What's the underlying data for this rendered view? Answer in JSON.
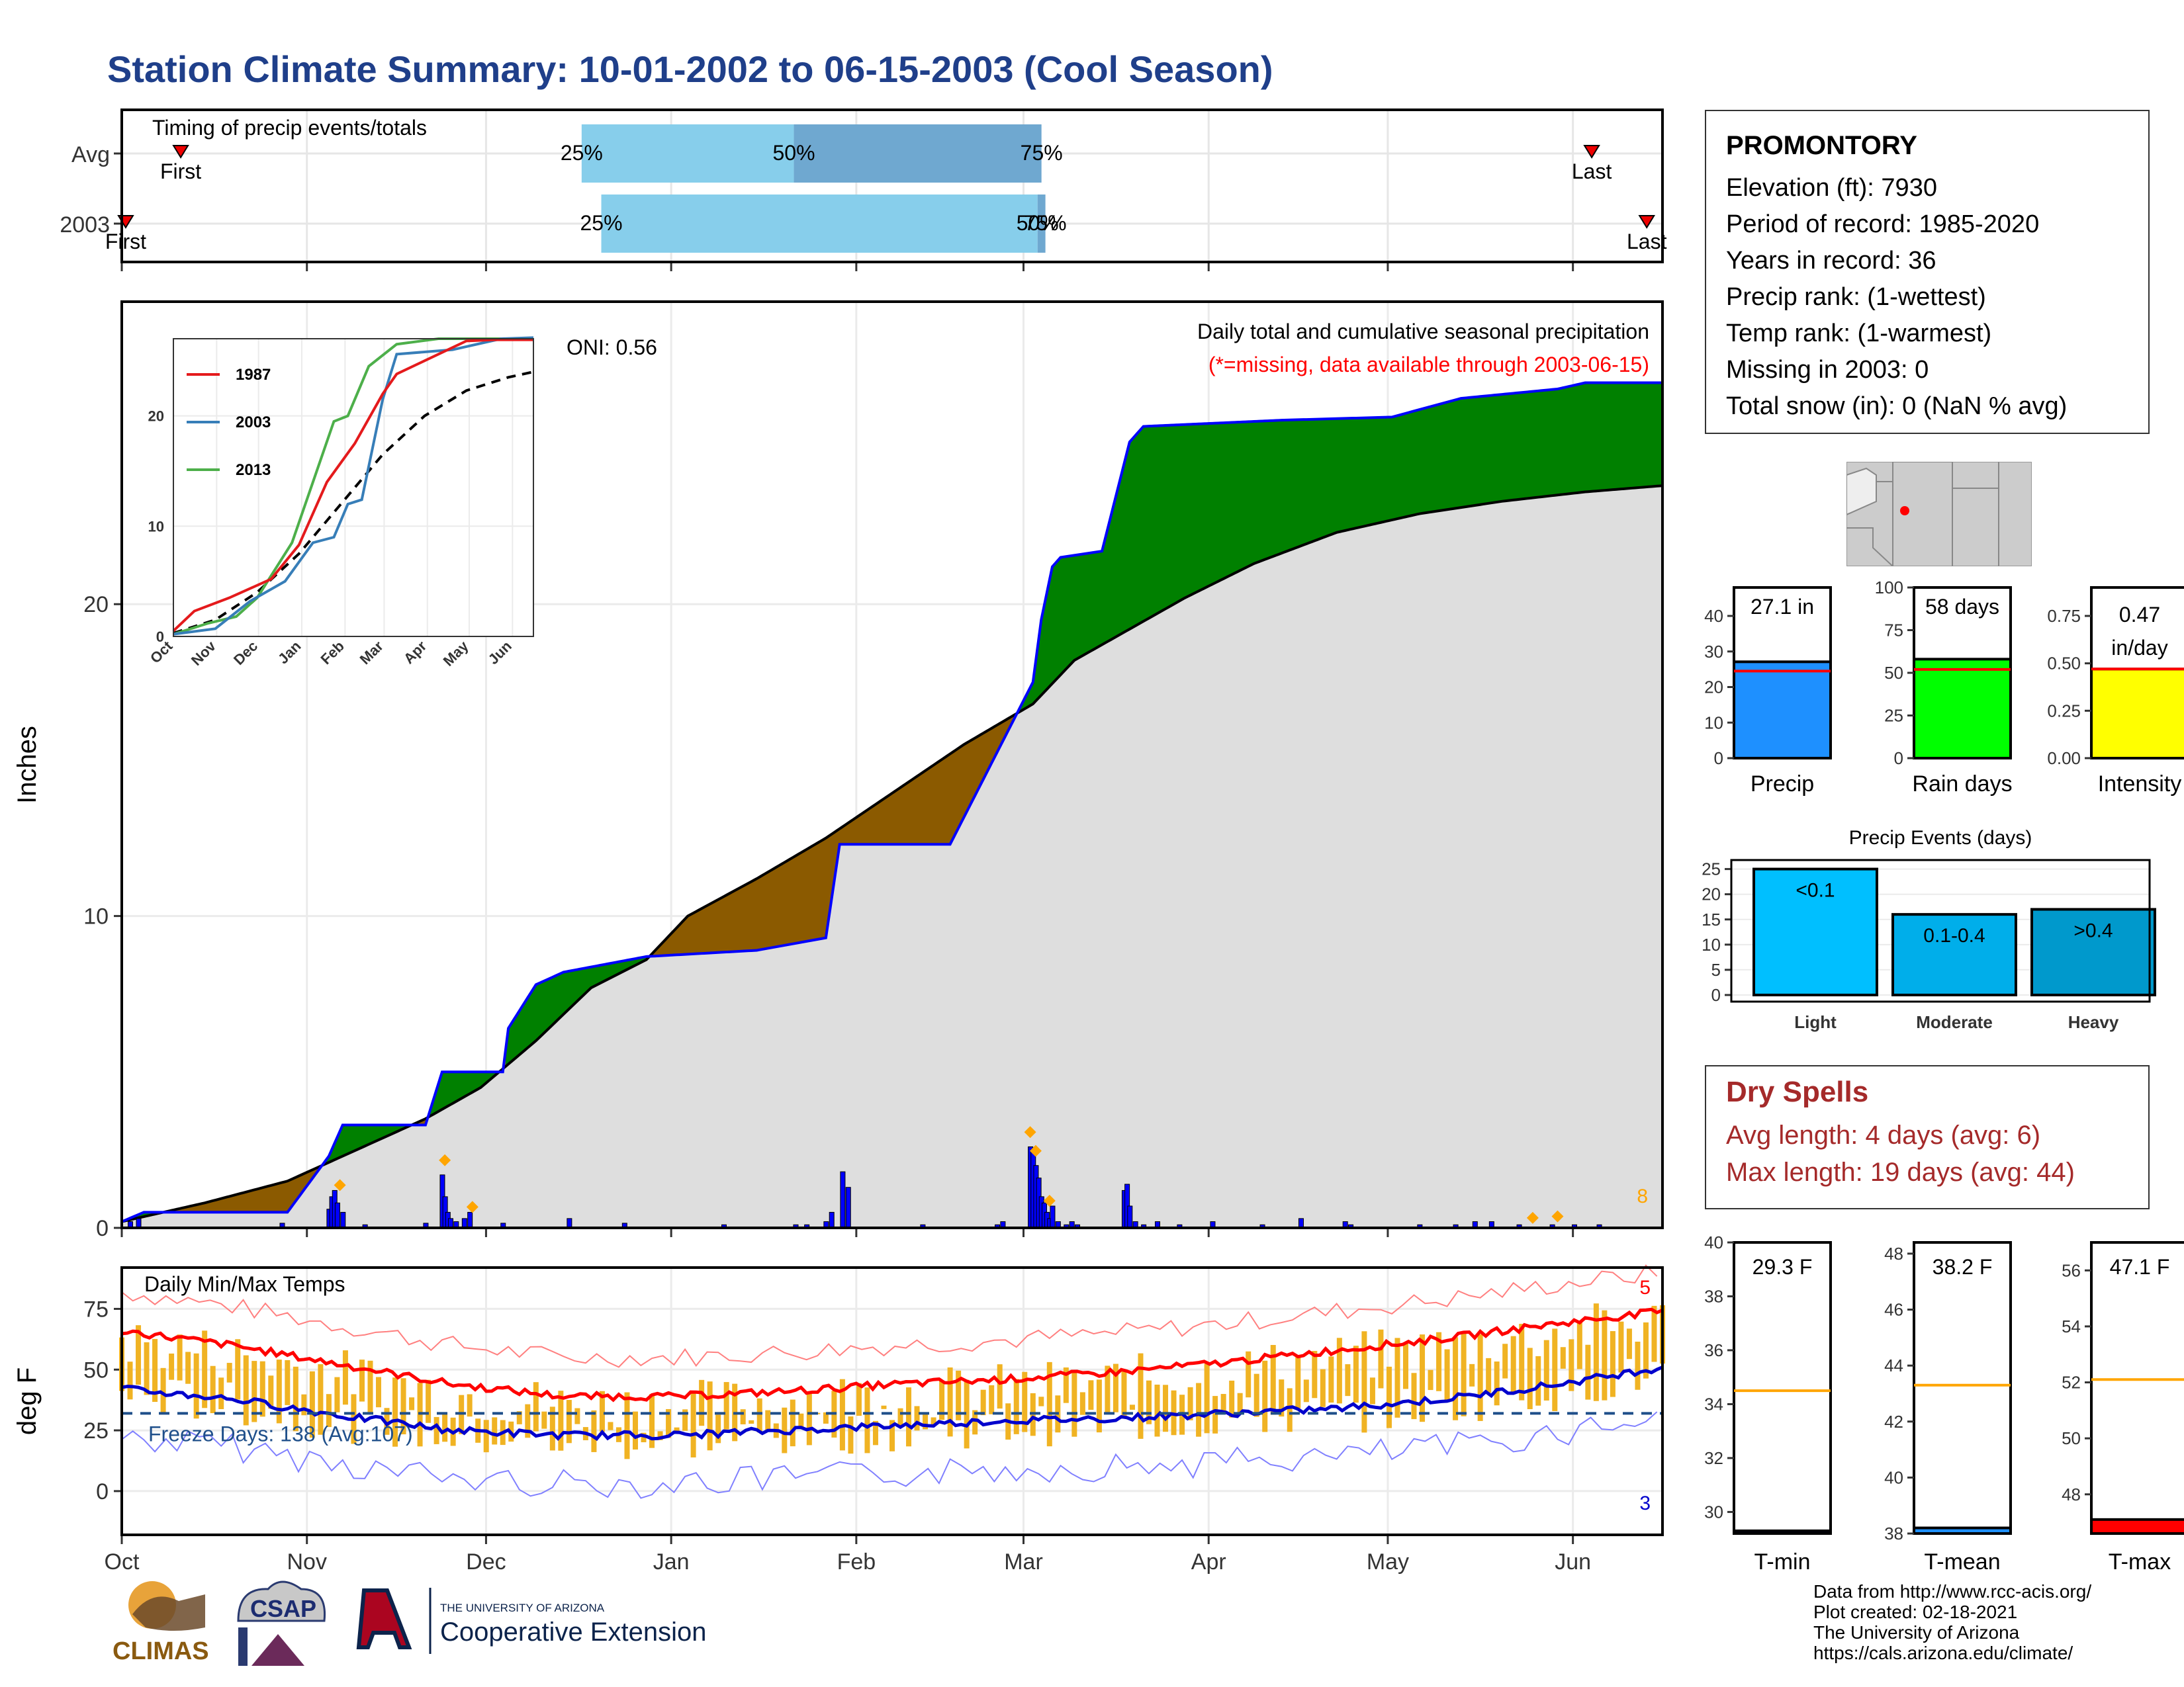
{
  "page": {
    "title": "Station Climate Summary: 10-01-2002 to 06-15-2003 (Cool Season)"
  },
  "station_box": {
    "name": "PROMONTORY",
    "lines": [
      "Elevation (ft): 7930",
      "Period of record: 1985-2020",
      "Years in record: 36",
      "Precip rank:  (1-wettest)",
      "Temp rank:  (1-warmest)",
      "Missing in 2003: 0",
      "Total snow (in): 0 (NaN % avg)"
    ]
  },
  "dry_spells": {
    "heading": "Dry Spells",
    "avg_length": "Avg length: 4 days (avg: 6)",
    "max_length": "Max length: 19 days (avg: 44)"
  },
  "credits": {
    "lines": [
      "Data from http://www.rcc-acis.org/",
      "Plot created: 02-18-2021",
      "The University of Arizona",
      "https://cals.arizona.edu/climate/"
    ]
  },
  "logos": {
    "climas": "CLIMAS",
    "csap": "CSAP",
    "ua_small": "THE UNIVERSITY OF ARIZONA",
    "ua_big": "Cooperative Extension"
  },
  "colors": {
    "title": "#1f3f8a",
    "above_avg": "#008000",
    "below_avg": "#8b5a00",
    "seasonal_line": "#0000ff",
    "normal_fill": "#dedede",
    "temp_bars": "#f0b323",
    "avg_tmax": "#ff0000",
    "avg_tmin": "#0000cc",
    "precip_bar": "#1e90ff",
    "raindays_bar": "#00ff00",
    "intensity_bar": "#ffff00",
    "dry_spells": "#a52a2a"
  },
  "chart_data": [
    {
      "id": "timing",
      "type": "bar",
      "title": "Timing of precip events/totals",
      "rows": [
        {
          "label": "Avg",
          "p25_day": 117,
          "p50_day": 171,
          "p75_day": 234,
          "first_day": 15,
          "last_day": 374
        },
        {
          "label": "2003",
          "p25_day": 122,
          "p50_day": 233,
          "p75_day": 235,
          "first_day": 1,
          "last_day": 388
        }
      ],
      "pct_labels": [
        "25%",
        "50%",
        "75%"
      ],
      "marker_labels": {
        "avg_first": "First",
        "avg_last": "Last",
        "cur_first": "First",
        "cur_last": "Last"
      }
    },
    {
      "id": "precip",
      "type": "area",
      "title": "Daily total and cumulative seasonal precipitation",
      "subtitle": "(*=missing, data available through 2003-06-15)",
      "oni": "ONI: 0.56",
      "ylabel": "Inches",
      "ylim": [
        0,
        30
      ],
      "yticks": [
        0,
        10,
        20
      ],
      "xticks": [
        "Oct",
        "Nov",
        "Dec",
        "Jan",
        "Feb",
        "Mar",
        "Apr",
        "May",
        "Jun"
      ],
      "corner_count": "8",
      "cumulative_2003": [
        [
          0,
          0.2
        ],
        [
          8,
          0.5
        ],
        [
          60,
          0.5
        ],
        [
          75,
          2.3
        ],
        [
          80,
          3.3
        ],
        [
          110,
          3.3
        ],
        [
          116,
          5.0
        ],
        [
          138,
          5.0
        ],
        [
          140,
          6.4
        ],
        [
          150,
          7.8
        ],
        [
          160,
          8.2
        ],
        [
          190,
          8.7
        ],
        [
          230,
          8.9
        ],
        [
          255,
          9.3
        ],
        [
          260,
          12.3
        ],
        [
          280,
          12.3
        ],
        [
          300,
          12.3
        ],
        [
          330,
          17.5
        ],
        [
          333,
          19.5
        ],
        [
          337,
          21.2
        ],
        [
          340,
          21.5
        ],
        [
          355,
          21.7
        ],
        [
          365,
          25.2
        ],
        [
          370,
          25.7
        ],
        [
          420,
          25.9
        ],
        [
          460,
          26.0
        ],
        [
          485,
          26.6
        ],
        [
          520,
          26.9
        ],
        [
          530,
          27.1
        ],
        [
          552,
          27.1
        ],
        [
          558,
          27.1
        ]
      ],
      "cumulative_avg": [
        [
          0,
          0.2
        ],
        [
          30,
          0.8
        ],
        [
          60,
          1.5
        ],
        [
          85,
          2.5
        ],
        [
          110,
          3.5
        ],
        [
          130,
          4.5
        ],
        [
          150,
          6.0
        ],
        [
          170,
          7.7
        ],
        [
          190,
          8.6
        ],
        [
          205,
          10.0
        ],
        [
          230,
          11.2
        ],
        [
          255,
          12.5
        ],
        [
          280,
          14.0
        ],
        [
          305,
          15.5
        ],
        [
          330,
          16.8
        ],
        [
          345,
          18.2
        ],
        [
          365,
          19.2
        ],
        [
          385,
          20.2
        ],
        [
          410,
          21.3
        ],
        [
          440,
          22.3
        ],
        [
          470,
          22.9
        ],
        [
          500,
          23.3
        ],
        [
          530,
          23.6
        ],
        [
          558,
          23.8
        ]
      ],
      "daily_2003": [
        [
          3,
          0.2
        ],
        [
          6,
          0.3
        ],
        [
          58,
          0.15
        ],
        [
          75,
          0.6
        ],
        [
          76,
          1.0
        ],
        [
          77,
          1.2
        ],
        [
          78,
          0.8
        ],
        [
          80,
          0.5
        ],
        [
          88,
          0.1
        ],
        [
          110,
          0.15
        ],
        [
          116,
          1.7
        ],
        [
          117,
          1.0
        ],
        [
          118,
          0.5
        ],
        [
          119,
          0.3
        ],
        [
          121,
          0.2
        ],
        [
          124,
          0.3
        ],
        [
          126,
          0.5
        ],
        [
          138,
          0.15
        ],
        [
          162,
          0.3
        ],
        [
          182,
          0.15
        ],
        [
          218,
          0.1
        ],
        [
          244,
          0.1
        ],
        [
          248,
          0.1
        ],
        [
          255,
          0.2
        ],
        [
          257,
          0.5
        ],
        [
          261,
          1.8
        ],
        [
          263,
          1.3
        ],
        [
          290,
          0.1
        ],
        [
          317,
          0.1
        ],
        [
          319,
          0.2
        ],
        [
          329,
          2.6
        ],
        [
          330,
          2.5
        ],
        [
          331,
          2.0
        ],
        [
          332,
          1.6
        ],
        [
          333,
          1.0
        ],
        [
          334,
          0.8
        ],
        [
          335,
          0.5
        ],
        [
          336,
          0.3
        ],
        [
          337,
          0.7
        ],
        [
          339,
          0.2
        ],
        [
          342,
          0.1
        ],
        [
          344,
          0.2
        ],
        [
          346,
          0.1
        ],
        [
          363,
          1.2
        ],
        [
          364,
          1.4
        ],
        [
          365,
          0.7
        ],
        [
          367,
          0.2
        ],
        [
          370,
          0.1
        ],
        [
          375,
          0.2
        ],
        [
          383,
          0.1
        ],
        [
          395,
          0.2
        ],
        [
          413,
          0.1
        ],
        [
          427,
          0.3
        ],
        [
          443,
          0.2
        ],
        [
          445,
          0.1
        ],
        [
          470,
          0.1
        ],
        [
          483,
          0.1
        ],
        [
          490,
          0.2
        ],
        [
          496,
          0.2
        ],
        [
          506,
          0.1
        ],
        [
          518,
          0.1
        ],
        [
          526,
          0.1
        ],
        [
          535,
          0.1
        ]
      ],
      "snow_markers": [
        [
          79,
          1.2
        ],
        [
          117,
          2.0
        ],
        [
          127,
          0.5
        ],
        [
          329,
          2.9
        ],
        [
          331,
          2.3
        ],
        [
          336,
          0.7
        ],
        [
          511,
          0.15
        ],
        [
          520,
          0.2
        ]
      ],
      "inset": {
        "series": [
          {
            "name": "1987",
            "color": "#e41a1c"
          },
          {
            "name": "2003",
            "color": "#377eb8"
          },
          {
            "name": "2013",
            "color": "#4daf4a"
          }
        ],
        "yticks": [
          0,
          10,
          20
        ],
        "ylim": [
          0,
          27
        ],
        "xticks": [
          "Oct",
          "Nov",
          "Dec",
          "Jan",
          "Feb",
          "Mar",
          "Apr",
          "May",
          "Jun"
        ],
        "s1987": [
          [
            0,
            0.5
          ],
          [
            15,
            2.3
          ],
          [
            40,
            3.5
          ],
          [
            70,
            5.2
          ],
          [
            90,
            8.3
          ],
          [
            110,
            14.0
          ],
          [
            130,
            17.5
          ],
          [
            150,
            22.0
          ],
          [
            160,
            23.8
          ],
          [
            180,
            25.0
          ],
          [
            210,
            26.8
          ],
          [
            230,
            26.9
          ],
          [
            258,
            26.9
          ]
        ],
        "s2003": [
          [
            0,
            0.2
          ],
          [
            30,
            0.7
          ],
          [
            55,
            3.2
          ],
          [
            80,
            5.0
          ],
          [
            100,
            8.5
          ],
          [
            115,
            9.0
          ],
          [
            125,
            12.0
          ],
          [
            135,
            12.4
          ],
          [
            150,
            21.5
          ],
          [
            160,
            25.6
          ],
          [
            200,
            26.0
          ],
          [
            235,
            27.0
          ],
          [
            258,
            27.1
          ]
        ],
        "s2013": [
          [
            0,
            0.2
          ],
          [
            25,
            1.2
          ],
          [
            45,
            1.8
          ],
          [
            60,
            3.5
          ],
          [
            85,
            8.5
          ],
          [
            100,
            14.0
          ],
          [
            115,
            19.5
          ],
          [
            125,
            20.0
          ],
          [
            140,
            24.5
          ],
          [
            160,
            26.5
          ],
          [
            190,
            27.0
          ],
          [
            258,
            27.0
          ]
        ],
        "savg": [
          [
            0,
            0.3
          ],
          [
            30,
            1.5
          ],
          [
            60,
            4.0
          ],
          [
            90,
            7.5
          ],
          [
            120,
            12.0
          ],
          [
            150,
            16.5
          ],
          [
            180,
            20.0
          ],
          [
            210,
            22.3
          ],
          [
            240,
            23.5
          ],
          [
            258,
            24.0
          ]
        ]
      }
    },
    {
      "id": "temps",
      "type": "bar",
      "title": "Daily Min/Max Temps",
      "ylabel": "deg F",
      "yticks": [
        0,
        25,
        50,
        75
      ],
      "ylim": [
        -18,
        92
      ],
      "xticks": [
        "Oct",
        "Nov",
        "Dec",
        "Jan",
        "Feb",
        "Mar",
        "Apr",
        "May",
        "Jun"
      ],
      "freeze_label": "Freeze Days: 138 (Avg:107)",
      "freeze_line": 32,
      "record_high_count": "5",
      "record_low_count": "3",
      "avg_tmax": [
        [
          0,
          66
        ],
        [
          40,
          60
        ],
        [
          80,
          52
        ],
        [
          120,
          44
        ],
        [
          160,
          39
        ],
        [
          200,
          39
        ],
        [
          240,
          41
        ],
        [
          280,
          44
        ],
        [
          320,
          46
        ],
        [
          360,
          49
        ],
        [
          400,
          53
        ],
        [
          440,
          58
        ],
        [
          480,
          63
        ],
        [
          520,
          69
        ],
        [
          558,
          74
        ]
      ],
      "avg_tmin": [
        [
          0,
          42
        ],
        [
          40,
          38
        ],
        [
          80,
          31
        ],
        [
          120,
          25
        ],
        [
          160,
          23
        ],
        [
          200,
          23
        ],
        [
          240,
          25
        ],
        [
          280,
          27
        ],
        [
          320,
          29
        ],
        [
          360,
          30
        ],
        [
          400,
          32
        ],
        [
          440,
          34
        ],
        [
          480,
          38
        ],
        [
          520,
          44
        ],
        [
          558,
          51
        ]
      ]
    },
    {
      "id": "precip_bars",
      "type": "bar",
      "panels": [
        {
          "category": "Precip",
          "value": 27.1,
          "avg": 24.5,
          "label": "27.1 in",
          "ylim": [
            0,
            48
          ],
          "yticks": [
            0,
            10,
            20,
            30,
            40
          ]
        },
        {
          "category": "Rain days",
          "value": 58,
          "avg": 52,
          "label": "58 days",
          "ylim": [
            0,
            100
          ],
          "yticks": [
            0,
            25,
            50,
            75,
            100
          ]
        },
        {
          "category": "Intensity",
          "value": 0.47,
          "avg": 0.47,
          "label_1": "0.47",
          "label_2": "in/day",
          "ylim": [
            0,
            0.9
          ],
          "yticks": [
            "0.00",
            "0.25",
            "0.50",
            "0.75"
          ]
        }
      ]
    },
    {
      "id": "precip_events",
      "type": "bar",
      "title": "Precip Events (days)",
      "categories": [
        "Light",
        "Moderate",
        "Heavy"
      ],
      "values": [
        25,
        16,
        17
      ],
      "bar_labels": [
        "<0.1",
        "0.1-0.4",
        ">0.4"
      ],
      "yticks": [
        0,
        5,
        10,
        15,
        20,
        25
      ],
      "ylim": [
        0,
        26
      ]
    },
    {
      "id": "temp_bars",
      "type": "bar",
      "panels": [
        {
          "category": "T-min",
          "value": 29.3,
          "avg": 34.5,
          "label": "29.3 F",
          "ylim": [
            29.2,
            40
          ],
          "yticks": [
            30,
            32,
            34,
            36,
            38,
            40
          ]
        },
        {
          "category": "T-mean",
          "value": 38.2,
          "avg": 43.3,
          "label": "38.2 F",
          "ylim": [
            38,
            48.4
          ],
          "yticks": [
            38,
            40,
            42,
            44,
            46,
            48
          ]
        },
        {
          "category": "T-max",
          "value": 47.1,
          "avg": 52.1,
          "label": "47.1 F",
          "ylim": [
            46.6,
            57
          ],
          "yticks": [
            48,
            50,
            52,
            54,
            56
          ]
        }
      ]
    }
  ]
}
